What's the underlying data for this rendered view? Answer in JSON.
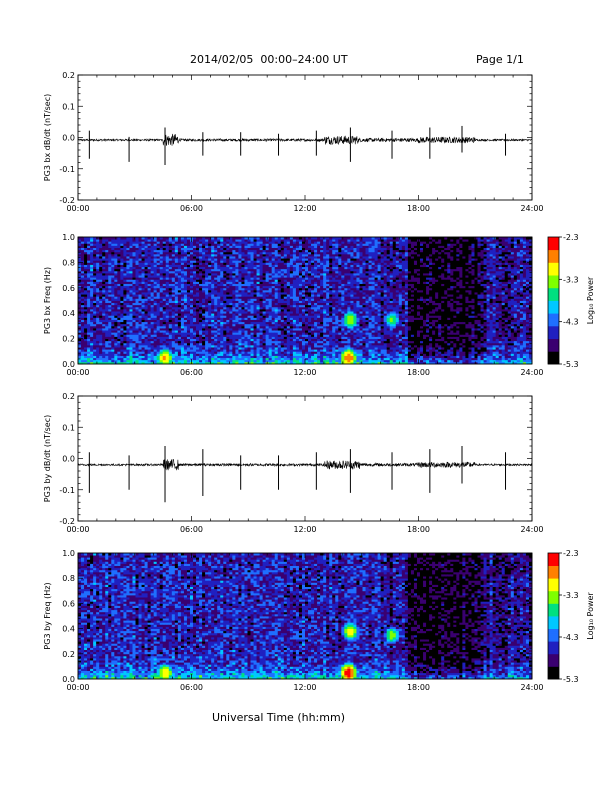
{
  "header": {
    "title": "2014/02/05  00:00–24:00 UT",
    "page": "Page 1/1"
  },
  "xlabel": "Universal Time (hh:mm)",
  "colorbar_label": "Log₁₀ Power",
  "colormap": [
    "#000000",
    "#3a0070",
    "#2020c0",
    "#1f6fff",
    "#00c8ff",
    "#00e080",
    "#7fff00",
    "#ffff00",
    "#ff8000",
    "#ff0000"
  ],
  "chart_data": [
    {
      "type": "line",
      "ylabel": "PG3 bx dB/dt (nT/sec)",
      "xlim": [
        0,
        24
      ],
      "ylim": [
        -0.2,
        0.2
      ],
      "x_ticks": [
        "00:00",
        "06:00",
        "12:00",
        "18:00",
        "24:00"
      ],
      "y_ticks": [
        "-0.2",
        "-0.1",
        "0.0",
        "0.1",
        "0.2"
      ],
      "baseline": -0.008,
      "noise": [
        {
          "t0": 0,
          "t1": 4.5,
          "amp": 0.003
        },
        {
          "t0": 4.5,
          "t1": 5.3,
          "amp": 0.02
        },
        {
          "t0": 5.3,
          "t1": 13,
          "amp": 0.004
        },
        {
          "t0": 13,
          "t1": 14.8,
          "amp": 0.014
        },
        {
          "t0": 14.8,
          "t1": 18,
          "amp": 0.006
        },
        {
          "t0": 18,
          "t1": 21,
          "amp": 0.01
        },
        {
          "t0": 21,
          "t1": 24,
          "amp": 0.003
        }
      ],
      "spikes": [
        {
          "t": 0.6,
          "up": 0.03,
          "down": -0.06
        },
        {
          "t": 2.7,
          "up": 0.01,
          "down": -0.07
        },
        {
          "t": 4.6,
          "up": 0.04,
          "down": -0.08
        },
        {
          "t": 6.6,
          "up": 0.025,
          "down": -0.05
        },
        {
          "t": 8.6,
          "up": 0.025,
          "down": -0.05
        },
        {
          "t": 10.6,
          "up": 0.02,
          "down": -0.05
        },
        {
          "t": 12.6,
          "up": 0.03,
          "down": -0.05
        },
        {
          "t": 14.4,
          "up": 0.04,
          "down": -0.07
        },
        {
          "t": 16.6,
          "up": 0.03,
          "down": -0.06
        },
        {
          "t": 18.6,
          "up": 0.04,
          "down": -0.06
        },
        {
          "t": 20.3,
          "up": 0.045,
          "down": -0.04
        },
        {
          "t": 22.6,
          "up": 0.02,
          "down": -0.05
        }
      ]
    },
    {
      "type": "heatmap",
      "ylabel": "PG3 bx Freq (Hz)",
      "xlim": [
        0,
        24
      ],
      "ylim": [
        0.0,
        1.0
      ],
      "x_ticks": [
        "00:00",
        "06:00",
        "12:00",
        "18:00",
        "24:00"
      ],
      "y_ticks": [
        "0.0",
        "0.2",
        "0.4",
        "0.6",
        "0.8",
        "1.0"
      ],
      "colorbar_ticks": [
        "-2.3",
        "-3.3",
        "-4.3",
        "-5.3"
      ],
      "zlim": [
        -5.3,
        -2.3
      ],
      "bright_patches": [
        {
          "t": 4.6,
          "f": 0.05,
          "v": -2.8
        },
        {
          "t": 14.3,
          "f": 0.05,
          "v": -2.6
        },
        {
          "t": 14.4,
          "f": 0.35,
          "v": -3.2
        },
        {
          "t": 16.6,
          "f": 0.35,
          "v": -3.4
        }
      ]
    },
    {
      "type": "line",
      "ylabel": "PG3 by dB/dt (nT/sec)",
      "xlim": [
        0,
        24
      ],
      "ylim": [
        -0.2,
        0.2
      ],
      "x_ticks": [
        "00:00",
        "06:00",
        "12:00",
        "18:00",
        "24:00"
      ],
      "y_ticks": [
        "-0.2",
        "-0.1",
        "0.0",
        "0.1",
        "0.2"
      ],
      "baseline": -0.02,
      "noise": [
        {
          "t0": 0,
          "t1": 4.5,
          "amp": 0.003
        },
        {
          "t0": 4.5,
          "t1": 5.3,
          "amp": 0.018
        },
        {
          "t0": 5.3,
          "t1": 13,
          "amp": 0.004
        },
        {
          "t0": 13,
          "t1": 14.9,
          "amp": 0.014
        },
        {
          "t0": 14.9,
          "t1": 18,
          "amp": 0.005
        },
        {
          "t0": 18,
          "t1": 21,
          "amp": 0.009
        },
        {
          "t0": 21,
          "t1": 24,
          "amp": 0.003
        }
      ],
      "spikes": [
        {
          "t": 0.6,
          "up": 0.04,
          "down": -0.09
        },
        {
          "t": 2.7,
          "up": 0.03,
          "down": -0.08
        },
        {
          "t": 4.6,
          "up": 0.06,
          "down": -0.12
        },
        {
          "t": 6.6,
          "up": 0.05,
          "down": -0.1
        },
        {
          "t": 8.6,
          "up": 0.03,
          "down": -0.08
        },
        {
          "t": 10.6,
          "up": 0.03,
          "down": -0.08
        },
        {
          "t": 12.6,
          "up": 0.04,
          "down": -0.08
        },
        {
          "t": 14.4,
          "up": 0.05,
          "down": -0.09
        },
        {
          "t": 16.6,
          "up": 0.04,
          "down": -0.08
        },
        {
          "t": 18.6,
          "up": 0.05,
          "down": -0.09
        },
        {
          "t": 20.3,
          "up": 0.06,
          "down": -0.06
        },
        {
          "t": 22.6,
          "up": 0.04,
          "down": -0.08
        }
      ]
    },
    {
      "type": "heatmap",
      "ylabel": "PG3 by Freq (Hz)",
      "xlim": [
        0,
        24
      ],
      "ylim": [
        0.0,
        1.0
      ],
      "x_ticks": [
        "00:00",
        "06:00",
        "12:00",
        "18:00",
        "24:00"
      ],
      "y_ticks": [
        "0.0",
        "0.2",
        "0.4",
        "0.6",
        "0.8",
        "1.0"
      ],
      "colorbar_ticks": [
        "-2.3",
        "-3.3",
        "-4.3",
        "-5.3"
      ],
      "zlim": [
        -5.3,
        -2.3
      ],
      "bright_patches": [
        {
          "t": 4.6,
          "f": 0.05,
          "v": -2.9
        },
        {
          "t": 14.3,
          "f": 0.05,
          "v": -2.4
        },
        {
          "t": 14.4,
          "f": 0.38,
          "v": -3.0
        },
        {
          "t": 16.6,
          "f": 0.35,
          "v": -3.3
        }
      ]
    }
  ]
}
